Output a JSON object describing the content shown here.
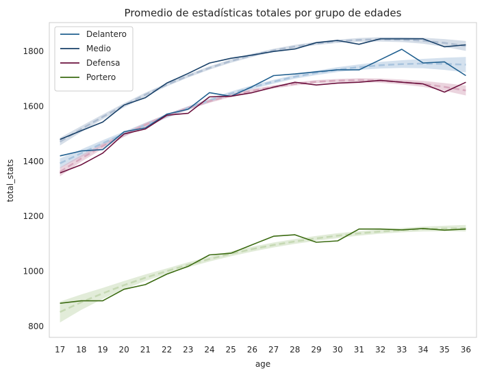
{
  "chart_data": {
    "type": "line",
    "title": "Promedio de estadísticas totales por grupo de edades",
    "xlabel": "age",
    "ylabel": "total_stats",
    "x": [
      17,
      18,
      19,
      20,
      21,
      22,
      23,
      24,
      25,
      26,
      27,
      28,
      29,
      30,
      31,
      32,
      33,
      34,
      35,
      36
    ],
    "xlim": [
      16.5,
      36.5
    ],
    "ylim": [
      760,
      1905
    ],
    "y_ticks": [
      800,
      1000,
      1200,
      1400,
      1600,
      1800
    ],
    "grid": false,
    "legend_position": "top-left",
    "series": [
      {
        "name": "Delantero",
        "color": "#1f5f8f",
        "band_color": "#a9c4de",
        "values": [
          1420,
          1438,
          1443,
          1508,
          1522,
          1572,
          1590,
          1650,
          1637,
          1672,
          1712,
          1718,
          1726,
          1733,
          1733,
          1770,
          1808,
          1758,
          1762,
          1712
        ],
        "fit": [
          1393,
          1430,
          1466,
          1500,
          1533,
          1565,
          1594,
          1622,
          1647,
          1670,
          1690,
          1708,
          1722,
          1734,
          1743,
          1750,
          1754,
          1756,
          1755,
          1752
        ],
        "band": [
          18,
          14,
          11,
          9,
          8,
          7,
          7,
          7,
          7,
          7,
          7,
          7,
          8,
          9,
          10,
          12,
          14,
          17,
          22,
          28
        ]
      },
      {
        "name": "Medio",
        "color": "#173f67",
        "band_color": "#aebdd1",
        "values": [
          1480,
          1512,
          1543,
          1605,
          1632,
          1685,
          1720,
          1758,
          1775,
          1787,
          1800,
          1809,
          1832,
          1840,
          1826,
          1846,
          1846,
          1846,
          1817,
          1824
        ],
        "fit": [
          1472,
          1518,
          1562,
          1604,
          1643,
          1679,
          1711,
          1740,
          1765,
          1786,
          1804,
          1818,
          1829,
          1837,
          1842,
          1844,
          1843,
          1839,
          1831,
          1820
        ],
        "band": [
          14,
          11,
          9,
          8,
          7,
          6,
          6,
          6,
          6,
          6,
          6,
          6,
          6,
          6,
          7,
          8,
          9,
          11,
          14,
          18
        ]
      },
      {
        "name": "Defensa",
        "color": "#6a0f3c",
        "band_color": "#d8a9be",
        "values": [
          1358,
          1388,
          1430,
          1500,
          1518,
          1568,
          1575,
          1635,
          1637,
          1650,
          1670,
          1688,
          1678,
          1685,
          1688,
          1695,
          1688,
          1682,
          1652,
          1688
        ],
        "fit": [
          1362,
          1411,
          1456,
          1497,
          1533,
          1566,
          1594,
          1619,
          1640,
          1657,
          1671,
          1682,
          1690,
          1694,
          1696,
          1694,
          1689,
          1682,
          1671,
          1658
        ],
        "band": [
          16,
          12,
          10,
          8,
          7,
          6,
          6,
          6,
          6,
          6,
          6,
          6,
          6,
          6,
          7,
          8,
          9,
          11,
          14,
          18
        ]
      },
      {
        "name": "Portero",
        "color": "#3a6a10",
        "band_color": "#c6d9b4",
        "values": [
          884,
          893,
          893,
          935,
          952,
          990,
          1018,
          1060,
          1066,
          1097,
          1128,
          1133,
          1106,
          1111,
          1154,
          1154,
          1151,
          1156,
          1150,
          1154
        ],
        "fit": [
          852,
          888,
          920,
          950,
          977,
          1001,
          1024,
          1045,
          1064,
          1081,
          1096,
          1109,
          1120,
          1130,
          1138,
          1145,
          1150,
          1154,
          1156,
          1157
        ],
        "band": [
          38,
          28,
          20,
          15,
          12,
          10,
          9,
          9,
          9,
          9,
          9,
          9,
          9,
          9,
          8,
          8,
          8,
          9,
          10,
          12
        ]
      }
    ]
  }
}
